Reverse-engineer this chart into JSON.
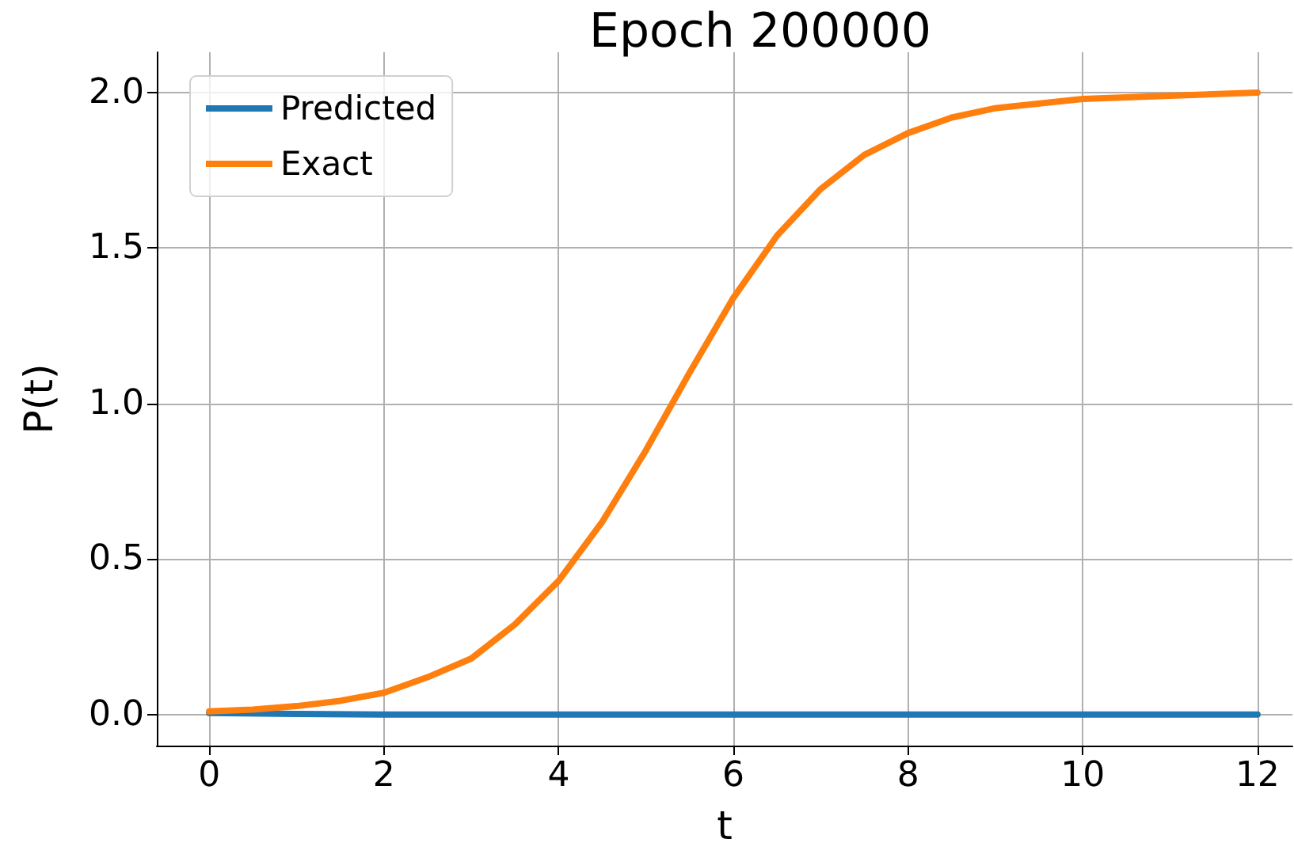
{
  "chart_data": {
    "type": "line",
    "title": "Epoch 200000",
    "xlabel": "t",
    "ylabel": "P(t)",
    "xlim": [
      -0.6,
      12.4
    ],
    "xticks": [
      0,
      2,
      4,
      6,
      8,
      10,
      12
    ],
    "ylim": [
      -0.1,
      2.13
    ],
    "yticks": [
      {
        "value": 0,
        "label": "0.0"
      },
      {
        "value": 0.5,
        "label": "0.5"
      },
      {
        "value": 1,
        "label": "1.0"
      },
      {
        "value": 1.5,
        "label": "1.5"
      },
      {
        "value": 2,
        "label": "2.0"
      }
    ],
    "grid": true,
    "legend": "top left",
    "marker": "none",
    "line_style": "solid",
    "series": [
      {
        "name": "Predicted",
        "color": "#1f77b4",
        "x": [
          0,
          1,
          2,
          4,
          6,
          8,
          10,
          12
        ],
        "values": [
          0.005,
          0.002,
          0,
          0,
          0,
          0,
          0,
          0
        ]
      },
      {
        "name": "Exact",
        "color": "#ff7f0e",
        "x": [
          0,
          0.5,
          1,
          1.5,
          2,
          2.5,
          3,
          3.5,
          4,
          4.5,
          5,
          5.5,
          6,
          6.5,
          7,
          7.5,
          8,
          8.5,
          9,
          10,
          11,
          12
        ],
        "values": [
          0.01,
          0.016,
          0.027,
          0.044,
          0.07,
          0.12,
          0.18,
          0.29,
          0.43,
          0.62,
          0.85,
          1.1,
          1.34,
          1.54,
          1.69,
          1.8,
          1.87,
          1.92,
          1.95,
          1.98,
          1.99,
          2.0
        ]
      }
    ]
  }
}
